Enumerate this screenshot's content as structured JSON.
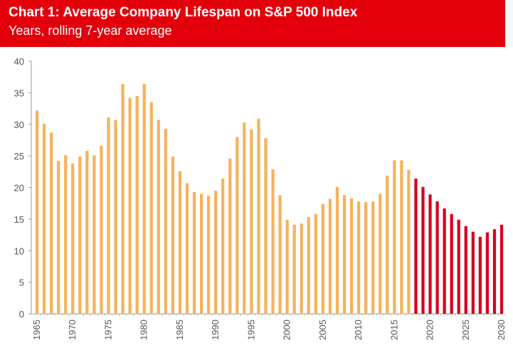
{
  "header": {
    "title": "Chart 1: Average Company Lifespan on S&P 500 Index",
    "subtitle": "Years, rolling 7-year average"
  },
  "colors": {
    "banner": "#e3000b",
    "historical_bar": "#f5b25c",
    "forecast_bar": "#d6001c",
    "axis": "#999999"
  },
  "chart_data": {
    "type": "bar",
    "title": "Chart 1: Average Company Lifespan on S&P 500 Index",
    "subtitle": "Years, rolling 7-year average",
    "xlabel": "",
    "ylabel": "",
    "ylim": [
      0,
      40
    ],
    "yticks": [
      0,
      5,
      10,
      15,
      20,
      25,
      30,
      35,
      40
    ],
    "xtick_labels": [
      "1965",
      "1970",
      "1975",
      "1980",
      "1985",
      "1990",
      "1995",
      "2000",
      "2005",
      "2010",
      "2015",
      "2020",
      "2025",
      "2030"
    ],
    "grid": false,
    "legend": "none",
    "x": [
      1965,
      1966,
      1967,
      1968,
      1969,
      1970,
      1971,
      1972,
      1973,
      1974,
      1975,
      1976,
      1977,
      1978,
      1979,
      1980,
      1981,
      1982,
      1983,
      1984,
      1985,
      1986,
      1987,
      1988,
      1989,
      1990,
      1991,
      1992,
      1993,
      1994,
      1995,
      1996,
      1997,
      1998,
      1999,
      2000,
      2001,
      2002,
      2003,
      2004,
      2005,
      2006,
      2007,
      2008,
      2009,
      2010,
      2011,
      2012,
      2013,
      2014,
      2015,
      2016,
      2017,
      2018,
      2019,
      2020,
      2021,
      2022,
      2023,
      2024,
      2025,
      2026,
      2027,
      2028,
      2029,
      2030
    ],
    "values": [
      32.2,
      30.1,
      28.7,
      24.2,
      25.1,
      23.8,
      24.9,
      25.8,
      25.1,
      26.6,
      31.1,
      30.7,
      36.4,
      34.2,
      34.5,
      36.4,
      33.5,
      30.7,
      29.3,
      24.9,
      22.6,
      20.7,
      19.3,
      19.0,
      18.7,
      19.5,
      21.4,
      24.6,
      28.0,
      30.3,
      29.2,
      30.9,
      27.8,
      22.9,
      18.8,
      14.9,
      14.1,
      14.3,
      15.3,
      15.8,
      17.4,
      18.2,
      20.1,
      18.8,
      18.3,
      17.8,
      17.7,
      17.8,
      19.0,
      21.9,
      24.3,
      24.3,
      22.8,
      21.4,
      20.1,
      18.9,
      17.8,
      16.7,
      15.8,
      14.9,
      13.9,
      13.0,
      12.2,
      12.9,
      13.4,
      14.1
    ],
    "forecast_from": 2018
  }
}
